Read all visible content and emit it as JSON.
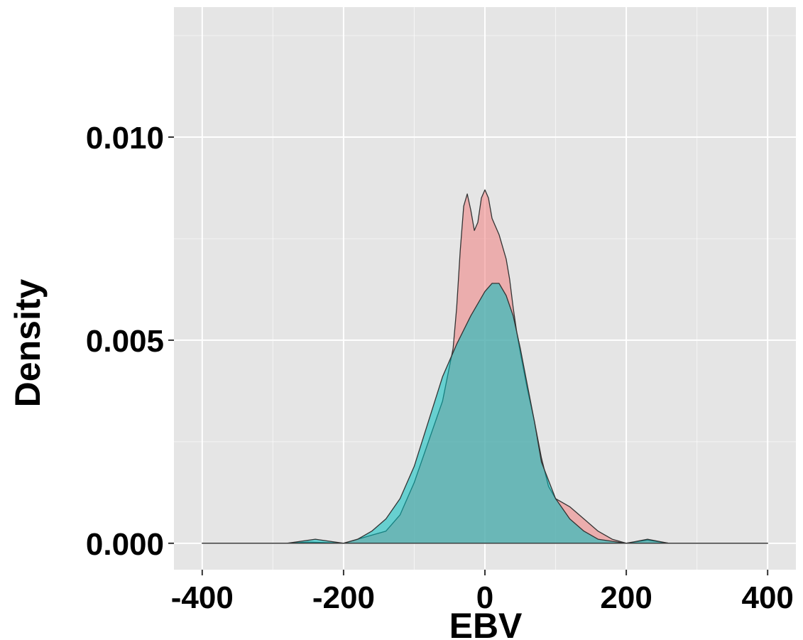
{
  "chart_data": {
    "type": "area",
    "title": "",
    "xlabel": "EBV",
    "ylabel": "Density",
    "xlim": [
      -440,
      440
    ],
    "ylim": [
      -0.00065,
      0.0132
    ],
    "x_ticks": [
      -400,
      -200,
      0,
      200,
      400
    ],
    "x_tick_labels": [
      "-400",
      "-200",
      "0",
      "200",
      "400"
    ],
    "x_minor_ticks": [
      -300,
      -100,
      100,
      300
    ],
    "y_ticks": [
      0.0,
      0.005,
      0.01
    ],
    "y_tick_labels": [
      "0.000",
      "0.005",
      "0.010"
    ],
    "y_minor_ticks": [
      0.0025,
      0.0075,
      0.0125
    ],
    "grid": true,
    "legend": "none",
    "colors": {
      "panel_background": "#e5e5e5",
      "grid": "#ffffff",
      "outline": "#333333"
    },
    "series": [
      {
        "color": "#f08080",
        "opacity": 0.55,
        "x": [
          -400,
          -280,
          -250,
          -200,
          -180,
          -160,
          -140,
          -120,
          -100,
          -80,
          -60,
          -45,
          -40,
          -35,
          -30,
          -25,
          -20,
          -15,
          -10,
          -5,
          0,
          5,
          10,
          15,
          20,
          25,
          30,
          35,
          40,
          45,
          50,
          60,
          70,
          80,
          90,
          100,
          120,
          140,
          160,
          180,
          200,
          230,
          260,
          280,
          400
        ],
        "y": [
          0,
          0,
          3e-05,
          0,
          0.0001,
          0.0002,
          0.0003,
          0.0007,
          0.0015,
          0.0025,
          0.0035,
          0.0048,
          0.0058,
          0.0072,
          0.0083,
          0.0086,
          0.0082,
          0.0077,
          0.0079,
          0.0085,
          0.0087,
          0.0085,
          0.008,
          0.0078,
          0.0076,
          0.0073,
          0.007,
          0.0065,
          0.0058,
          0.0052,
          0.0047,
          0.0038,
          0.003,
          0.0021,
          0.0014,
          0.0011,
          0.0009,
          0.0006,
          0.0003,
          0.0001,
          0,
          8e-05,
          0,
          0,
          0
        ]
      },
      {
        "color": "#00c0c0",
        "opacity": 0.55,
        "x": [
          -400,
          -280,
          -240,
          -200,
          -180,
          -160,
          -140,
          -120,
          -100,
          -80,
          -60,
          -40,
          -20,
          0,
          10,
          20,
          30,
          40,
          50,
          60,
          70,
          80,
          100,
          120,
          140,
          160,
          180,
          200,
          230,
          260,
          280,
          400
        ],
        "y": [
          0,
          0,
          0.0001,
          0,
          0.0001,
          0.0003,
          0.0006,
          0.0011,
          0.0019,
          0.003,
          0.0041,
          0.0049,
          0.0056,
          0.0062,
          0.0064,
          0.0064,
          0.0061,
          0.0056,
          0.0048,
          0.0039,
          0.003,
          0.002,
          0.0011,
          0.0006,
          0.0003,
          0.0001,
          5e-05,
          0,
          0.0001,
          0,
          0,
          0
        ]
      }
    ]
  }
}
